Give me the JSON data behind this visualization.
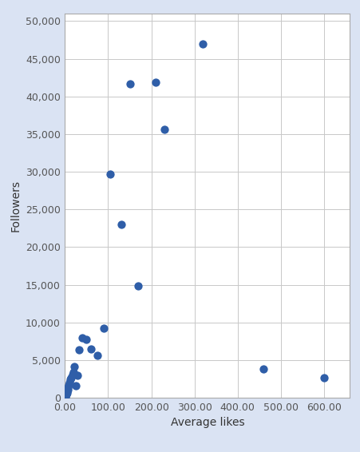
{
  "x": [
    2,
    3,
    4,
    5,
    6,
    7,
    8,
    10,
    12,
    15,
    18,
    20,
    22,
    25,
    28,
    32,
    40,
    50,
    60,
    75,
    90,
    105,
    130,
    150,
    170,
    210,
    230,
    320,
    460,
    600
  ],
  "y": [
    150,
    400,
    600,
    900,
    1100,
    1400,
    1700,
    2000,
    2400,
    2700,
    3100,
    3400,
    4100,
    1600,
    3000,
    6400,
    8000,
    7800,
    6500,
    5600,
    9200,
    29700,
    23000,
    41700,
    14800,
    41900,
    35600,
    47000,
    3800,
    2700
  ],
  "dot_color": "#2F5EA8",
  "dot_size": 55,
  "xlabel": "Average likes",
  "ylabel": "Followers",
  "xlim": [
    0,
    660
  ],
  "ylim": [
    0,
    51000
  ],
  "xticks": [
    0,
    100,
    200,
    300,
    400,
    500,
    600
  ],
  "yticks": [
    0,
    5000,
    10000,
    15000,
    20000,
    25000,
    30000,
    35000,
    40000,
    45000,
    50000
  ],
  "xtick_labels": [
    "0.00",
    "100.00",
    "200.00",
    "300.00",
    "400.00",
    "500.00",
    "600.00"
  ],
  "ytick_labels": [
    "0",
    "5,000",
    "10,000",
    "15,000",
    "20,000",
    "25,000",
    "30,000",
    "35,000",
    "40,000",
    "45,000",
    "50,000"
  ],
  "grid_color": "#C8C8C8",
  "plot_bg": "#FFFFFF",
  "outer_bg": "#DAE3F3",
  "xlabel_fontsize": 10,
  "ylabel_fontsize": 10,
  "tick_fontsize": 9,
  "spine_color": "#AAAAAA"
}
